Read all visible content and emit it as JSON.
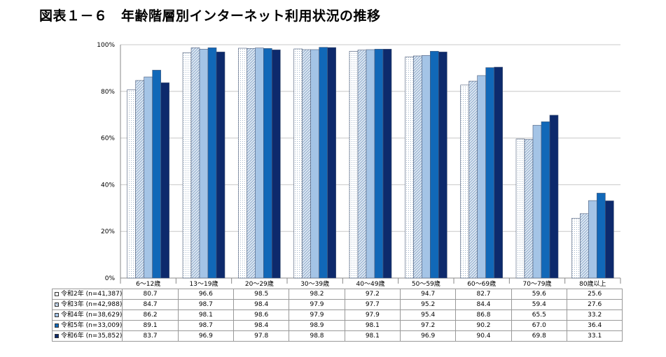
{
  "page": {
    "title": "図表１－６　年齢階層別インターネット利用状況の推移"
  },
  "chart_data": {
    "type": "bar",
    "ylim": [
      0,
      100
    ],
    "y_ticks": [
      "0%",
      "20%",
      "40%",
      "60%",
      "80%",
      "100%"
    ],
    "grid": true,
    "categories": [
      "6～12歳",
      "13～19歳",
      "20～29歳",
      "30～39歳",
      "40～49歳",
      "50～59歳",
      "60～69歳",
      "70～79歳",
      "80歳以上"
    ],
    "series": [
      {
        "name": "令和2年 (n=41,387)",
        "color": "#ffffff",
        "pattern": "dots",
        "values": [
          "80.7",
          "96.6",
          "98.5",
          "98.2",
          "97.2",
          "94.7",
          "82.7",
          "59.6",
          "25.6"
        ]
      },
      {
        "name": "令和3年 (n=42,988)",
        "color": "#cfdcec",
        "pattern": "hatch",
        "values": [
          "84.7",
          "98.7",
          "98.4",
          "97.9",
          "97.7",
          "95.2",
          "84.4",
          "59.4",
          "27.6"
        ]
      },
      {
        "name": "令和4年 (n=38,629)",
        "color": "#a4c4e6",
        "pattern": "solid",
        "values": [
          "86.2",
          "98.1",
          "98.6",
          "97.9",
          "97.9",
          "95.4",
          "86.8",
          "65.5",
          "33.2"
        ]
      },
      {
        "name": "令和5年 (n=33,009)",
        "color": "#1168b8",
        "pattern": "solid",
        "values": [
          "89.1",
          "98.7",
          "98.4",
          "98.9",
          "98.1",
          "97.2",
          "90.2",
          "67.0",
          "36.4"
        ]
      },
      {
        "name": "令和6年 (n=35,852)",
        "color": "#0d2a6c",
        "pattern": "solid",
        "values": [
          "83.7",
          "96.9",
          "97.8",
          "98.8",
          "98.1",
          "96.9",
          "90.4",
          "69.8",
          "33.1"
        ]
      }
    ]
  }
}
